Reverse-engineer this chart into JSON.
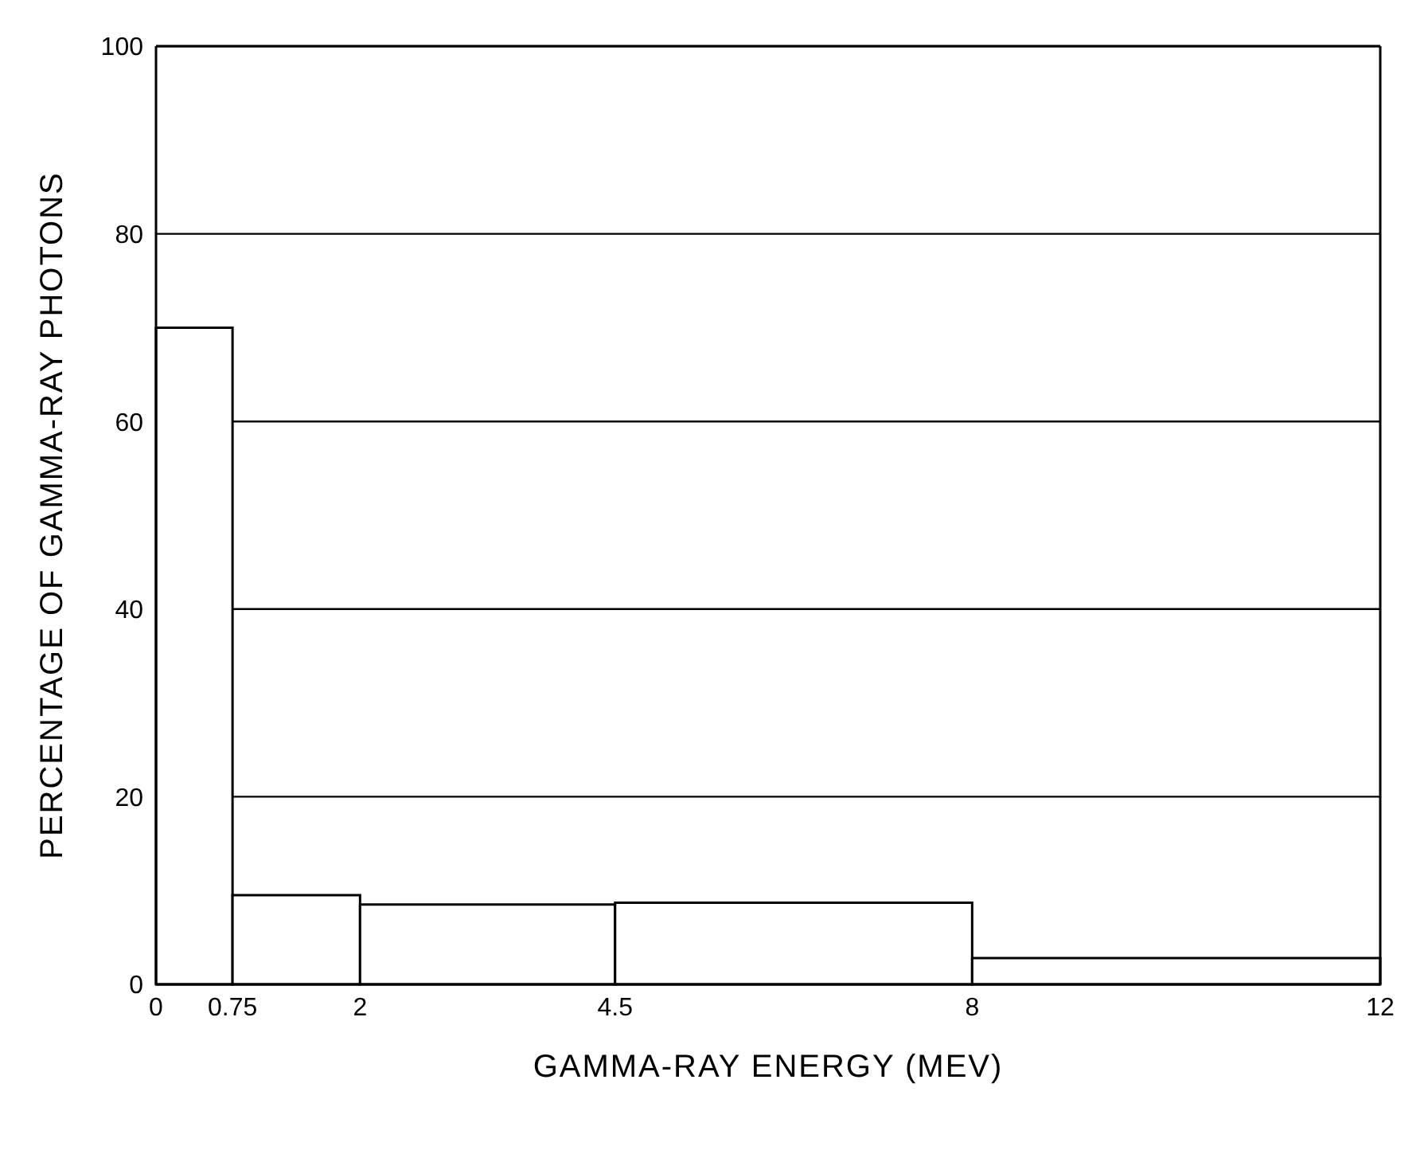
{
  "chart_data": {
    "type": "histogram",
    "xlabel": "GAMMA-RAY ENERGY (MEV)",
    "ylabel": "PERCENTAGE OF GAMMA-RAY PHOTONS",
    "bins": [
      0,
      0.75,
      2,
      4.5,
      8,
      12
    ],
    "values": [
      70,
      9.5,
      8.5,
      8.7,
      2.8
    ],
    "color": "#ffffff",
    "xlim": [
      0,
      12
    ],
    "xticks": [
      0,
      0.75,
      2,
      4.5,
      8,
      12
    ],
    "ylim": [
      0,
      100
    ],
    "yticks": [
      0,
      20,
      40,
      60,
      80,
      100
    ],
    "grid": "y"
  }
}
